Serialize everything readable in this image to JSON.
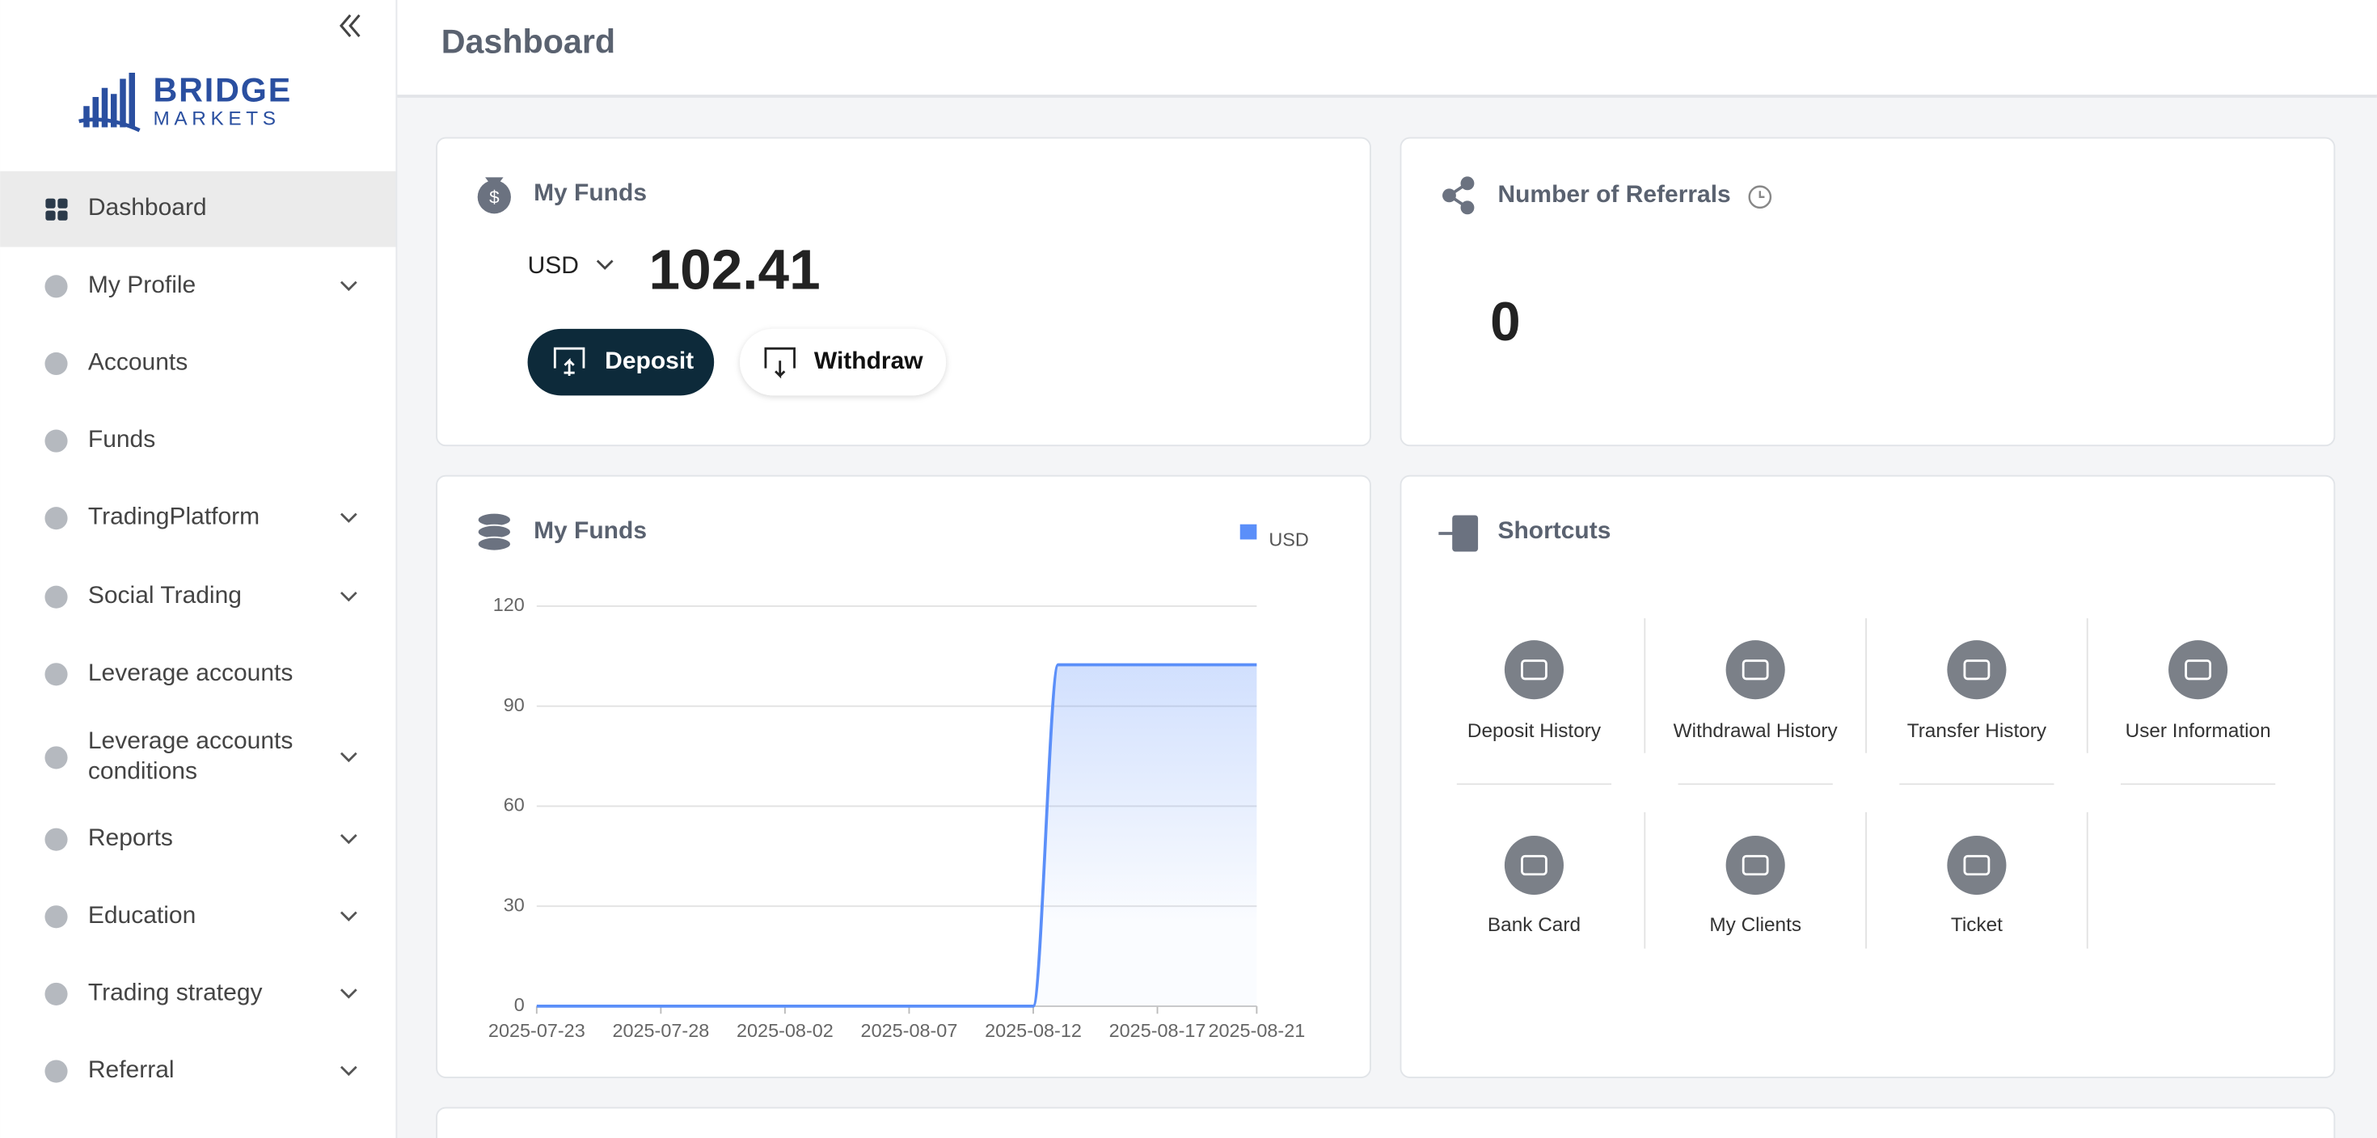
{
  "sidebar": {
    "logo": {
      "line1": "BRIDGE",
      "line2": "MARKETS"
    },
    "menu": [
      {
        "label": "Dashboard",
        "active": true,
        "expandable": false
      },
      {
        "label": "My Profile",
        "active": false,
        "expandable": true
      },
      {
        "label": "Accounts",
        "active": false,
        "expandable": false
      },
      {
        "label": "Funds",
        "active": false,
        "expandable": false
      },
      {
        "label": "TradingPlatform",
        "active": false,
        "expandable": true
      },
      {
        "label": "Social Trading",
        "active": false,
        "expandable": true
      },
      {
        "label": "Leverage accounts",
        "active": false,
        "expandable": false
      },
      {
        "label": "Leverage accounts conditions",
        "active": false,
        "expandable": true
      },
      {
        "label": "Reports",
        "active": false,
        "expandable": true
      },
      {
        "label": "Education",
        "active": false,
        "expandable": true
      },
      {
        "label": "Trading strategy",
        "active": false,
        "expandable": true
      },
      {
        "label": "Referral",
        "active": false,
        "expandable": true
      }
    ]
  },
  "header": {
    "title": "Dashboard"
  },
  "funds_card": {
    "title": "My Funds",
    "currency": "USD",
    "balance": 102.41,
    "buttons": [
      "Deposit",
      "Withdraw"
    ]
  },
  "referrals_card": {
    "title": "Number of Referrals",
    "count": 0
  },
  "funds_chart": {
    "type": "line",
    "title": "My Funds",
    "x": [
      "2025-07-23",
      "2025-07-24",
      "2025-07-25",
      "2025-07-26",
      "2025-07-27",
      "2025-07-28",
      "2025-07-29",
      "2025-07-30",
      "2025-07-31",
      "2025-08-01",
      "2025-08-02",
      "2025-08-03",
      "2025-08-04",
      "2025-08-05",
      "2025-08-06",
      "2025-08-07",
      "2025-08-08",
      "2025-08-09",
      "2025-08-10",
      "2025-08-11",
      "2025-08-12",
      "2025-08-13",
      "2025-08-14",
      "2025-08-15",
      "2025-08-16",
      "2025-08-17",
      "2025-08-18",
      "2025-08-19",
      "2025-08-20",
      "2025-08-21"
    ],
    "series": [
      {
        "name": "USD",
        "color": "#5b8ff9",
        "values": [
          0,
          0,
          0,
          0,
          0,
          0,
          0,
          0,
          0,
          0,
          0,
          0,
          0,
          0,
          0,
          0,
          0,
          0,
          0,
          0,
          0,
          102.41,
          102.41,
          102.41,
          102.41,
          102.41,
          102.41,
          102.41,
          102.41,
          102.41
        ]
      }
    ],
    "xticks": [
      "2025-07-23",
      "2025-07-28",
      "2025-08-02",
      "2025-08-07",
      "2025-08-12",
      "2025-08-17",
      "2025-08-21"
    ],
    "ylim": [
      0,
      120
    ],
    "yticks": [
      0,
      30,
      60,
      90,
      120
    ],
    "grid": true
  },
  "shortcuts": {
    "title": "Shortcuts",
    "items": [
      "Deposit History",
      "Withdrawal History",
      "Transfer History",
      "User Information",
      "Bank Card",
      "My Clients",
      "Ticket"
    ]
  }
}
